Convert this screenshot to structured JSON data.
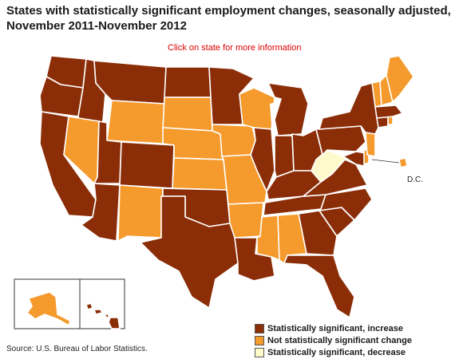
{
  "title": "States with statistically significant employment changes, seasonally adjusted, November 2011-November 2012",
  "hint": "Click on state for more information",
  "dc_label": "D.C.",
  "source": "Source:  U.S. Bureau of Labor Statistics.",
  "colors": {
    "increase": "#8b2e08",
    "no_change": "#f59a2c",
    "decrease": "#fffacc"
  },
  "legend": [
    {
      "key": "increase",
      "label": "Statistically significant, increase"
    },
    {
      "key": "no_change",
      "label": "Not statistically significant change"
    },
    {
      "key": "decrease",
      "label": "Statistically significant, decrease"
    }
  ],
  "states": {
    "WA": "increase",
    "OR": "increase",
    "CA": "increase",
    "ID": "increase",
    "NV": "no_change",
    "MT": "increase",
    "WY": "no_change",
    "UT": "increase",
    "AZ": "increase",
    "CO": "increase",
    "NM": "no_change",
    "ND": "increase",
    "SD": "no_change",
    "NE": "no_change",
    "KS": "no_change",
    "OK": "increase",
    "TX": "increase",
    "MN": "increase",
    "IA": "no_change",
    "MO": "no_change",
    "AR": "no_change",
    "LA": "increase",
    "WI": "no_change",
    "IL": "increase",
    "MI": "increase",
    "IN": "increase",
    "OH": "increase",
    "KY": "increase",
    "TN": "increase",
    "MS": "no_change",
    "AL": "no_change",
    "GA": "increase",
    "FL": "increase",
    "SC": "increase",
    "NC": "increase",
    "VA": "increase",
    "WV": "decrease",
    "PA": "increase",
    "NY": "increase",
    "VT": "no_change",
    "NH": "no_change",
    "ME": "no_change",
    "MA": "increase",
    "RI": "no_change",
    "CT": "increase",
    "NJ": "no_change",
    "DE": "no_change",
    "MD": "increase",
    "DC": "no_change",
    "AK": "no_change",
    "HI": "increase"
  }
}
